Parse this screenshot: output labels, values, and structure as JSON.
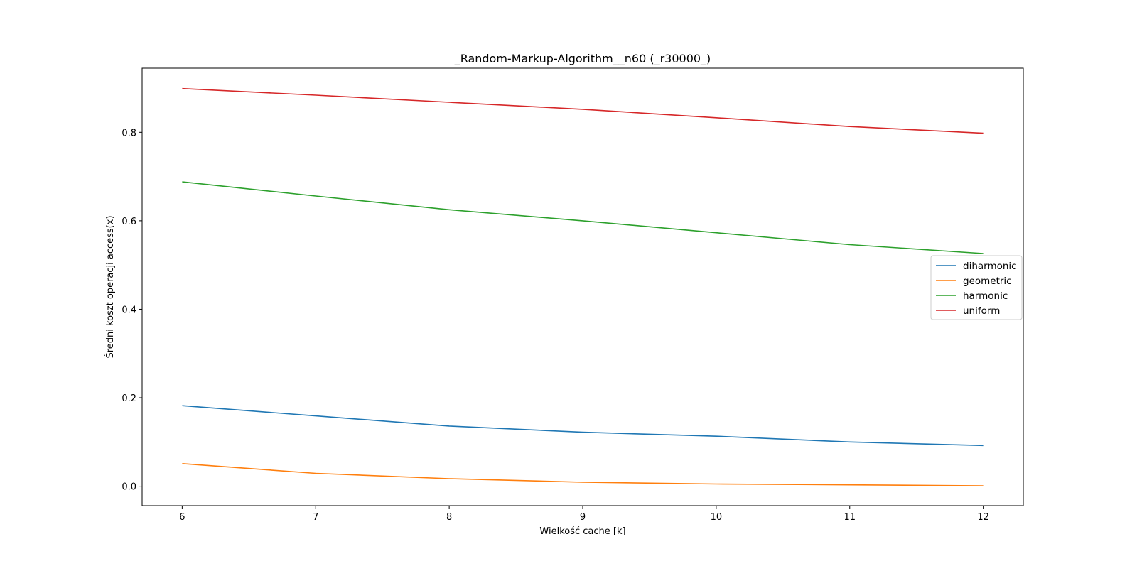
{
  "chart_data": {
    "type": "line",
    "title": "_Random-Markup-Algorithm__n60 (_r30000_)",
    "xlabel": "Wielkość cache [k]",
    "ylabel": "Średni koszt operacji access(x)",
    "x": [
      6,
      7,
      8,
      9,
      10,
      11,
      12
    ],
    "xticks": [
      6,
      7,
      8,
      9,
      10,
      11,
      12
    ],
    "yticks": [
      0.0,
      0.2,
      0.4,
      0.6,
      0.8
    ],
    "ytick_labels": [
      "0.0",
      "0.2",
      "0.4",
      "0.6",
      "0.8"
    ],
    "xlim": [
      5.7,
      12.3
    ],
    "ylim": [
      -0.044,
      0.945
    ],
    "grid": false,
    "legend_position": "center-right",
    "series": [
      {
        "name": "diharmonic",
        "color": "#1f77b4",
        "values": [
          0.182,
          0.159,
          0.136,
          0.122,
          0.113,
          0.1,
          0.092
        ]
      },
      {
        "name": "geometric",
        "color": "#ff7f0e",
        "values": [
          0.051,
          0.029,
          0.017,
          0.009,
          0.005,
          0.003,
          0.001
        ]
      },
      {
        "name": "harmonic",
        "color": "#2ca02c",
        "values": [
          0.688,
          0.656,
          0.625,
          0.6,
          0.573,
          0.546,
          0.526
        ]
      },
      {
        "name": "uniform",
        "color": "#d62728",
        "values": [
          0.899,
          0.884,
          0.868,
          0.852,
          0.833,
          0.813,
          0.798
        ]
      }
    ]
  }
}
